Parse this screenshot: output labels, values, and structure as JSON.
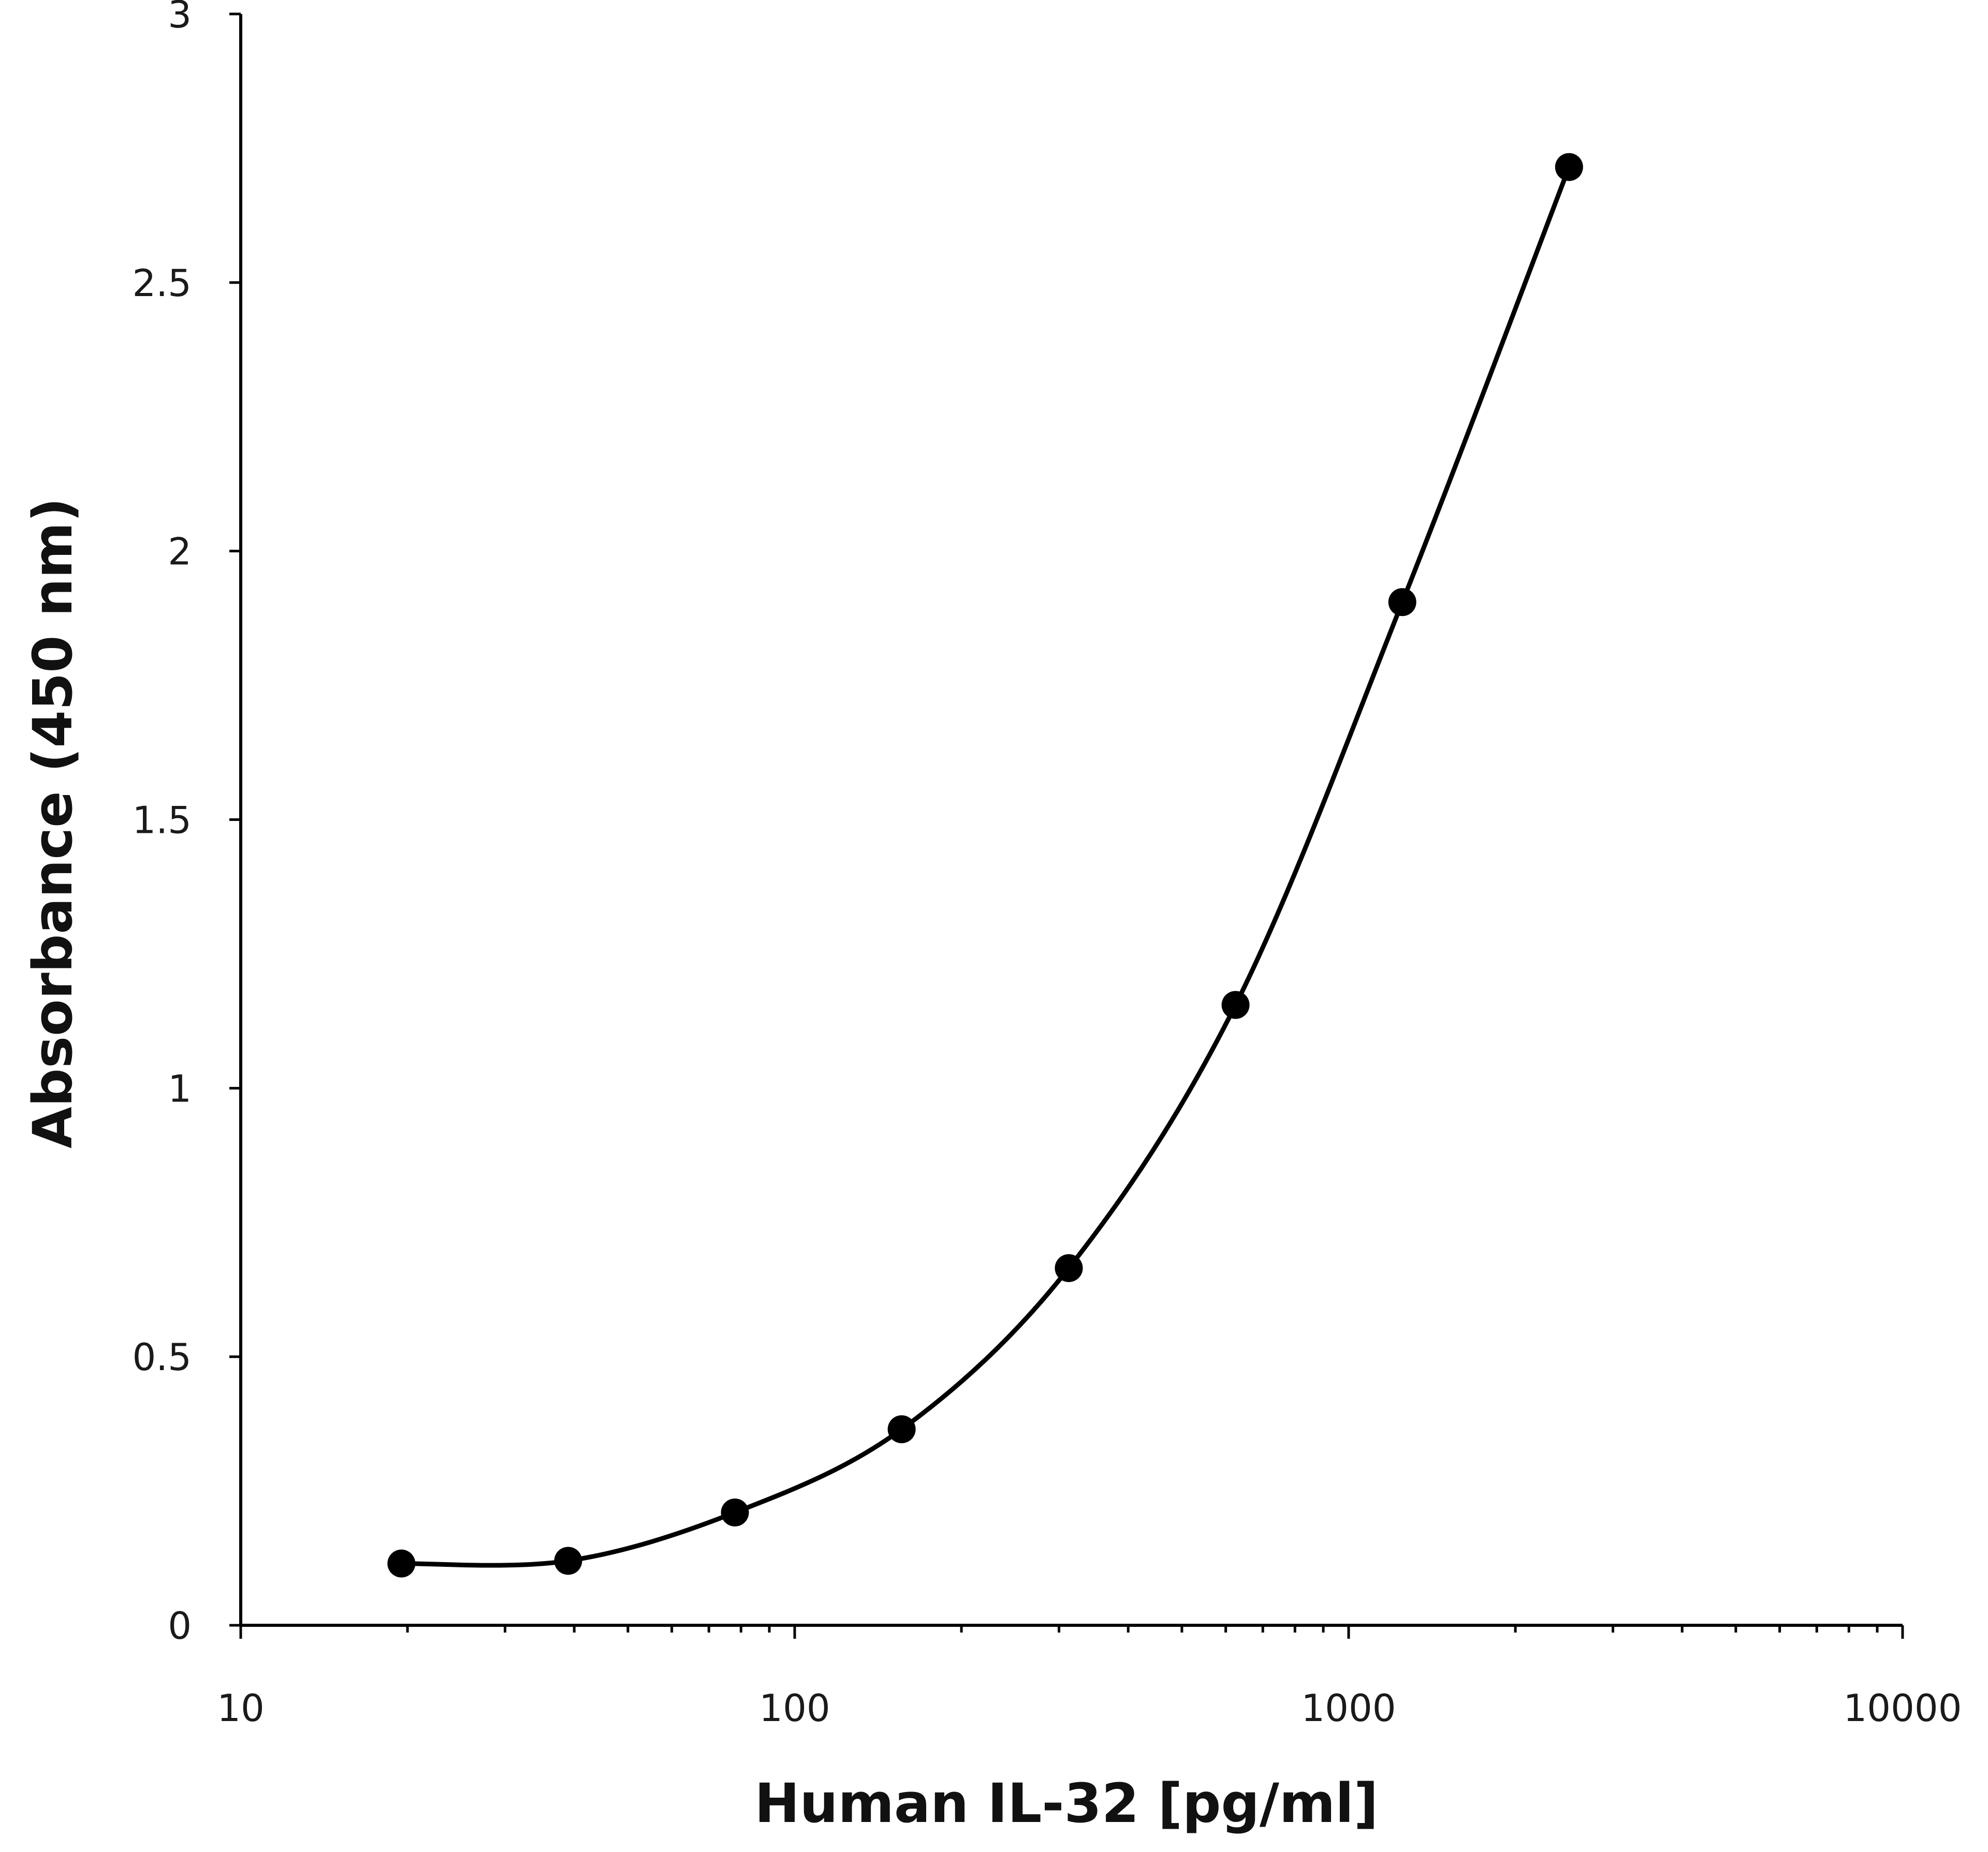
{
  "chart_data": {
    "type": "line",
    "title": "",
    "xlabel": "Human IL-32 [pg/ml]",
    "ylabel": "Absorbance (450 nm)",
    "x_scale": "log",
    "xlim": [
      10,
      10000
    ],
    "ylim": [
      0,
      3
    ],
    "x_ticks": [
      10,
      100,
      1000,
      10000
    ],
    "x_tick_labels": [
      "10",
      "100",
      "1000",
      "10000"
    ],
    "y_ticks": [
      0,
      0.5,
      1,
      1.5,
      2,
      2.5,
      3
    ],
    "y_tick_labels": [
      "0",
      "0.5",
      "1",
      "1.5",
      "2",
      "2.5",
      "3"
    ],
    "grid": false,
    "legend": "none",
    "series": [
      {
        "color": "#000000",
        "marker": "circle",
        "smooth": true,
        "x": [
          19.5,
          39,
          78,
          156,
          312.5,
          625,
          1250,
          2500
        ],
        "y": [
          0.115,
          0.12,
          0.21,
          0.365,
          0.665,
          1.155,
          1.905,
          2.715
        ]
      }
    ]
  }
}
